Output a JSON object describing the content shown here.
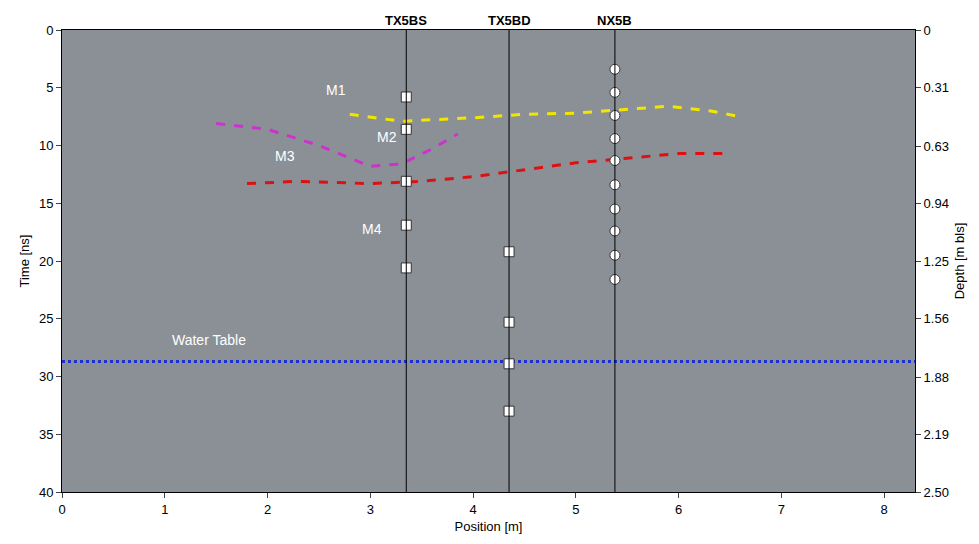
{
  "chart_data": {
    "type": "line",
    "x_label": "Position [m]",
    "y_label": "Time [ns]",
    "y2_label": "Depth [m bls]",
    "xlim": [
      0,
      8.3
    ],
    "xticks": [
      0,
      1,
      2,
      3,
      4,
      5,
      6,
      7,
      8
    ],
    "ylim": [
      40,
      0
    ],
    "yticks": [
      0,
      5,
      10,
      15,
      20,
      25,
      30,
      35,
      40
    ],
    "y2lim": [
      2.5,
      0
    ],
    "y2ticks": [
      0,
      0.31,
      0.63,
      0.94,
      1.25,
      1.56,
      1.88,
      2.19,
      {
        "value": 2.5,
        "label": "2.50"
      }
    ],
    "grid": false,
    "series": [
      {
        "color": "#f2e600",
        "line_style": "dash",
        "x": [
          2.8,
          3.3,
          4.0,
          4.5,
          5.0,
          5.5,
          5.9,
          6.3,
          6.6
        ],
        "values": [
          7.3,
          7.9,
          7.6,
          7.3,
          7.2,
          6.9,
          6.6,
          7.0,
          7.5
        ]
      },
      {
        "color": "#cc33cc",
        "line_style": "dash",
        "x": [
          1.5,
          2.0,
          2.5,
          3.0,
          3.3,
          3.6,
          3.85
        ],
        "values": [
          8.1,
          8.6,
          10.0,
          11.8,
          11.6,
          10.3,
          9.0
        ]
      },
      {
        "color": "#dd1111",
        "line_style": "dash",
        "x": [
          1.8,
          2.3,
          3.0,
          3.5,
          4.0,
          4.5,
          5.0,
          5.5,
          6.0,
          6.5
        ],
        "values": [
          13.3,
          13.1,
          13.3,
          13.1,
          12.7,
          12.1,
          11.5,
          11.1,
          10.7,
          10.7
        ]
      },
      {
        "color": "#1a2fd0",
        "line_style": "dot",
        "x": [
          0,
          8.3
        ],
        "values": [
          28.7,
          28.7
        ]
      }
    ],
    "boreholes": [
      {
        "label": "TX5BS",
        "x": 3.35,
        "marker": "square",
        "values": [
          5.8,
          8.6,
          13.1,
          16.9,
          20.6
        ]
      },
      {
        "label": "TX5BD",
        "x": 4.35,
        "marker": "square",
        "values": [
          19.2,
          25.3,
          28.9,
          33.0
        ]
      },
      {
        "label": "NX5B",
        "x": 5.38,
        "marker": "circle",
        "values": [
          3.4,
          5.4,
          7.4,
          9.4,
          11.3,
          13.4,
          15.5,
          17.4,
          19.5,
          21.6
        ]
      }
    ],
    "annotations": [
      {
        "text": "M1",
        "x": 2.55,
        "y": 5.2
      },
      {
        "text": "M2",
        "x": 3.05,
        "y": 9.3
      },
      {
        "text": "M3",
        "x": 2.05,
        "y": 10.9
      },
      {
        "text": "M4",
        "x": 2.9,
        "y": 17.2
      },
      {
        "text": "Water Table",
        "x": 1.05,
        "y": 26.8
      }
    ]
  }
}
